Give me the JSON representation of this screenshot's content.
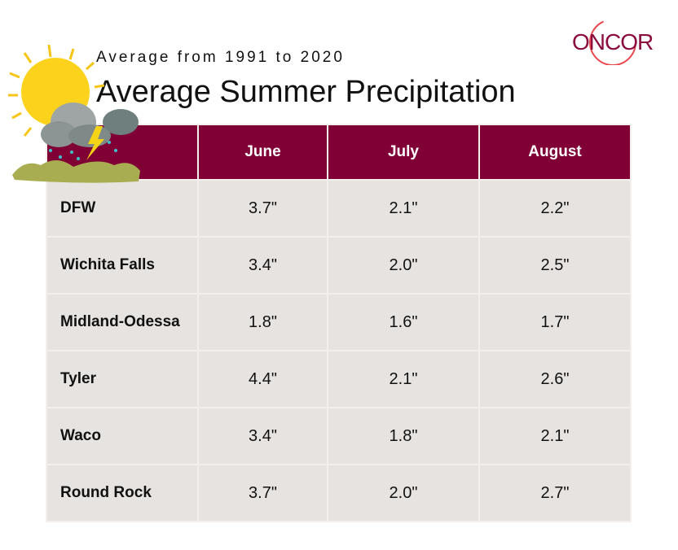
{
  "subtitle": "Average from 1991 to 2020",
  "title": "Average Summer Precipitation",
  "logo": "ONCOR",
  "colors": {
    "header": "#800036",
    "cell": "#e7e3e0",
    "logo": "#8a0d3e"
  },
  "chart_data": {
    "type": "table",
    "title": "Average Summer Precipitation",
    "subtitle": "Average from 1991 to 2020",
    "columns": [
      "",
      "June",
      "July",
      "August"
    ],
    "rows": [
      {
        "city": "DFW",
        "values": [
          "3.7\"",
          "2.1\"",
          "2.2\""
        ]
      },
      {
        "city": "Wichita Falls",
        "values": [
          "3.4\"",
          "2.0\"",
          "2.5\""
        ]
      },
      {
        "city": "Midland-Odessa",
        "values": [
          "1.8\"",
          "1.6\"",
          "1.7\""
        ]
      },
      {
        "city": "Tyler",
        "values": [
          "4.4\"",
          "2.1\"",
          "2.6\""
        ]
      },
      {
        "city": "Waco",
        "values": [
          "3.4\"",
          "1.8\"",
          "2.1\""
        ]
      },
      {
        "city": "Round Rock",
        "values": [
          "3.7\"",
          "2.0\"",
          "2.7\""
        ]
      }
    ]
  }
}
